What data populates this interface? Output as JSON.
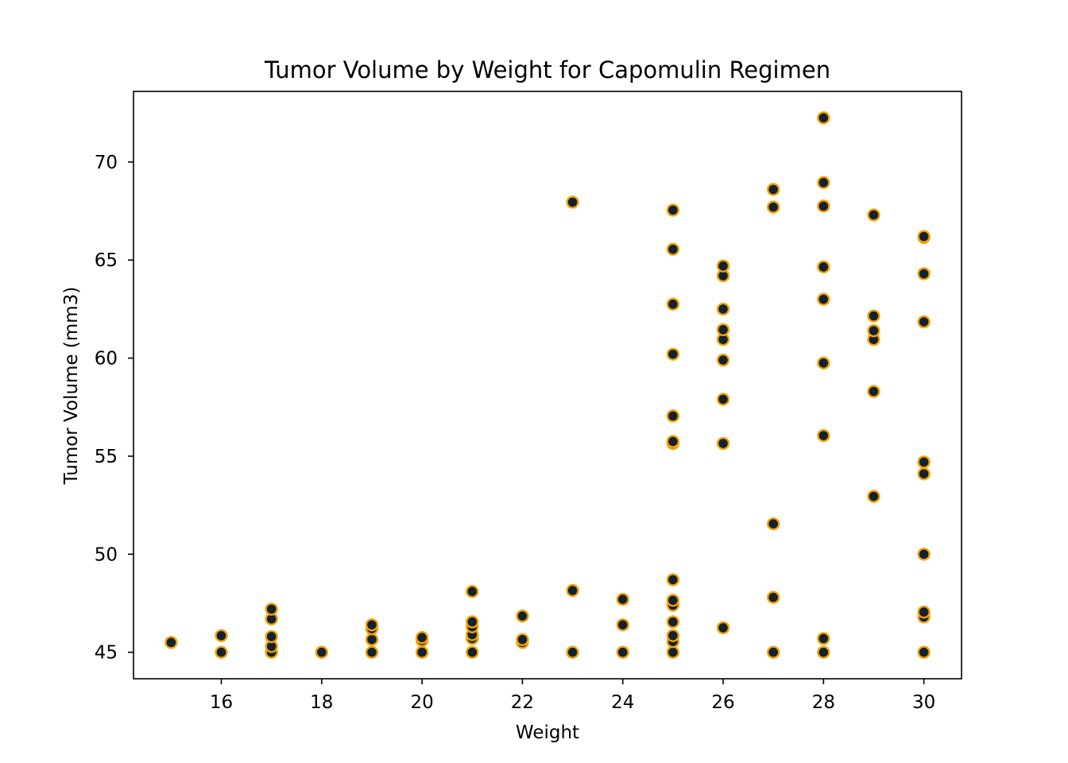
{
  "chart_data": {
    "type": "scatter",
    "title": "Tumor Volume by Weight for Capomulin Regimen",
    "xlabel": "Weight",
    "ylabel": "Tumor Volume (mm3)",
    "xlim": [
      14.25,
      30.75
    ],
    "ylim": [
      43.65,
      73.6
    ],
    "xticks": [
      16,
      18,
      20,
      22,
      24,
      26,
      28,
      30
    ],
    "yticks": [
      45,
      50,
      55,
      60,
      65,
      70
    ],
    "grid": false,
    "marker_face_color": "#14212e",
    "marker_edge_color": "#f5a300",
    "points": [
      [
        15,
        45.5
      ],
      [
        16,
        45.0
      ],
      [
        16,
        45.85
      ],
      [
        17,
        45.0
      ],
      [
        17,
        45.3
      ],
      [
        17,
        45.8
      ],
      [
        17,
        46.7
      ],
      [
        17,
        47.2
      ],
      [
        18,
        45.0
      ],
      [
        19,
        45.0
      ],
      [
        19,
        45.65
      ],
      [
        19,
        46.2
      ],
      [
        19,
        46.4
      ],
      [
        20,
        45.0
      ],
      [
        20,
        45.6
      ],
      [
        20,
        45.75
      ],
      [
        21,
        45.0
      ],
      [
        21,
        45.7
      ],
      [
        21,
        45.9
      ],
      [
        21,
        46.3
      ],
      [
        21,
        46.55
      ],
      [
        21,
        48.1
      ],
      [
        22,
        45.5
      ],
      [
        22,
        45.65
      ],
      [
        22,
        46.85
      ],
      [
        23,
        45.0
      ],
      [
        23,
        48.15
      ],
      [
        23,
        67.95
      ],
      [
        24,
        45.0
      ],
      [
        24,
        46.4
      ],
      [
        24,
        47.7
      ],
      [
        25,
        45.0
      ],
      [
        25,
        45.55
      ],
      [
        25,
        45.85
      ],
      [
        25,
        46.55
      ],
      [
        25,
        47.4
      ],
      [
        25,
        47.65
      ],
      [
        25,
        48.7
      ],
      [
        25,
        55.65
      ],
      [
        25,
        55.75
      ],
      [
        25,
        57.05
      ],
      [
        25,
        60.2
      ],
      [
        25,
        62.75
      ],
      [
        25,
        65.55
      ],
      [
        25,
        67.55
      ],
      [
        26,
        46.25
      ],
      [
        26,
        55.65
      ],
      [
        26,
        57.9
      ],
      [
        26,
        59.9
      ],
      [
        26,
        60.95
      ],
      [
        26,
        61.45
      ],
      [
        26,
        62.5
      ],
      [
        26,
        64.2
      ],
      [
        26,
        64.7
      ],
      [
        27,
        45.0
      ],
      [
        27,
        47.8
      ],
      [
        27,
        51.55
      ],
      [
        27,
        67.7
      ],
      [
        27,
        68.6
      ],
      [
        28,
        45.0
      ],
      [
        28,
        45.7
      ],
      [
        28,
        56.05
      ],
      [
        28,
        59.75
      ],
      [
        28,
        63.0
      ],
      [
        28,
        64.65
      ],
      [
        28,
        67.75
      ],
      [
        28,
        68.95
      ],
      [
        28,
        72.25
      ],
      [
        29,
        52.95
      ],
      [
        29,
        58.3
      ],
      [
        29,
        60.95
      ],
      [
        29,
        61.4
      ],
      [
        29,
        62.15
      ],
      [
        29,
        67.3
      ],
      [
        30,
        45.0
      ],
      [
        30,
        46.8
      ],
      [
        30,
        47.05
      ],
      [
        30,
        50.0
      ],
      [
        30,
        54.1
      ],
      [
        30,
        54.7
      ],
      [
        30,
        61.85
      ],
      [
        30,
        64.3
      ],
      [
        30,
        66.15
      ],
      [
        30,
        66.2
      ]
    ]
  }
}
